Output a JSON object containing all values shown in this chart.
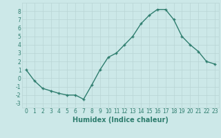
{
  "x": [
    0,
    1,
    2,
    3,
    4,
    5,
    6,
    7,
    8,
    9,
    10,
    11,
    12,
    13,
    14,
    15,
    16,
    17,
    18,
    19,
    20,
    21,
    22,
    23
  ],
  "y": [
    1.0,
    -0.3,
    -1.2,
    -1.5,
    -1.8,
    -2.0,
    -2.0,
    -2.5,
    -0.8,
    1.0,
    2.5,
    3.0,
    4.0,
    5.0,
    6.5,
    7.5,
    8.2,
    8.2,
    7.0,
    5.0,
    4.0,
    3.2,
    2.0,
    1.7
  ],
  "line_color": "#2e7d6e",
  "marker": "+",
  "marker_size": 3.5,
  "marker_lw": 1.0,
  "bg_color": "#cce8e8",
  "grid_color": "#b8d4d4",
  "xlabel": "Humidex (Indice chaleur)",
  "ylim": [
    -3.5,
    9.0
  ],
  "xlim": [
    -0.5,
    23.5
  ],
  "yticks": [
    -3,
    -2,
    -1,
    0,
    1,
    2,
    3,
    4,
    5,
    6,
    7,
    8
  ],
  "xticks": [
    0,
    1,
    2,
    3,
    4,
    5,
    6,
    7,
    8,
    9,
    10,
    11,
    12,
    13,
    14,
    15,
    16,
    17,
    18,
    19,
    20,
    21,
    22,
    23
  ],
  "tick_label_fontsize": 5.5,
  "xlabel_fontsize": 7.0,
  "line_width": 1.0
}
